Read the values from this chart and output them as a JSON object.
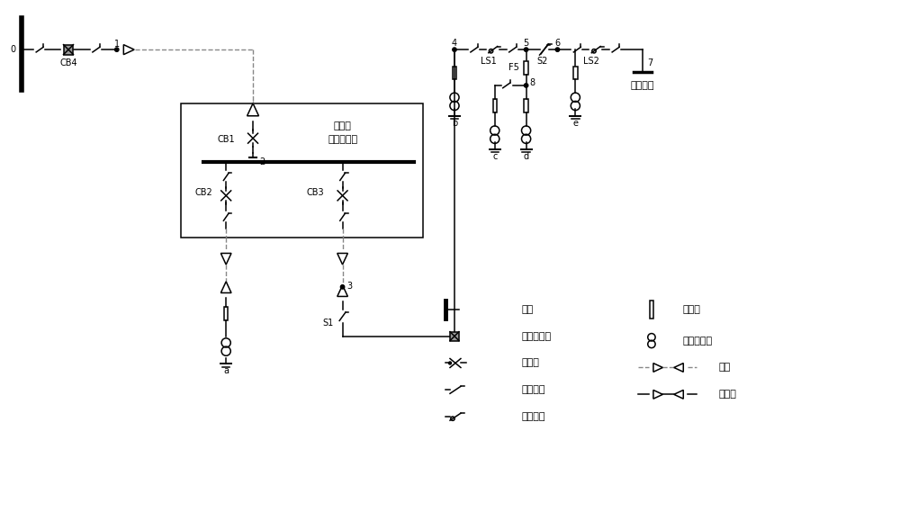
{
  "bg_color": "#ffffff",
  "line_color": "#000000",
  "gray_color": "#888888",
  "figsize": [
    10.0,
    5.89
  ],
  "dpi": 100,
  "xlim": [
    0,
    100
  ],
  "ylim": [
    0,
    58.9
  ]
}
